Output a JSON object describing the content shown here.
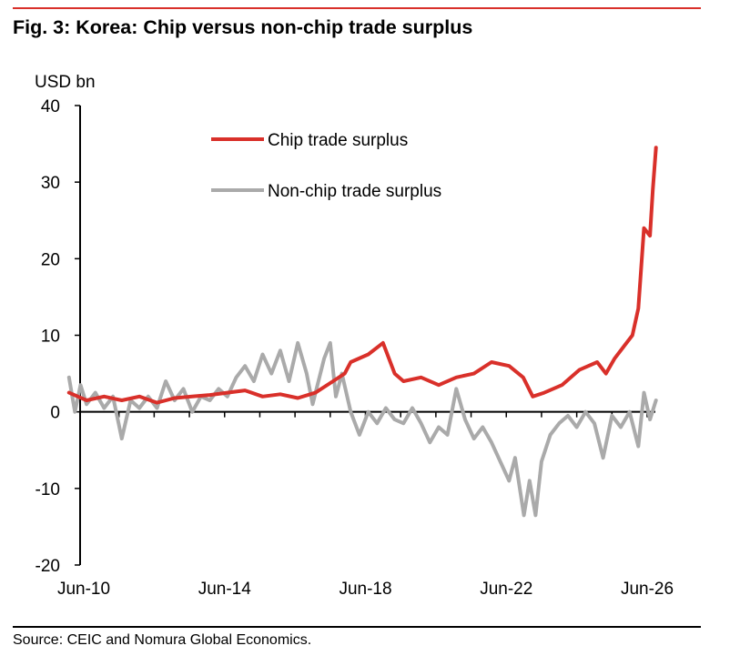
{
  "header": {
    "title": "Fig. 3: Korea: Chip versus non-chip trade surplus"
  },
  "footer": {
    "source": "Source: CEIC and Nomura Global Economics."
  },
  "colors": {
    "chip": "#d9302a",
    "nonchip": "#aaaaaa",
    "accent_rule": "#d9302a"
  },
  "chart_data": {
    "type": "line",
    "title": "Fig. 3: Korea: Chip versus non-chip trade surplus",
    "unit_label": "USD bn",
    "ylim": [
      -20,
      40
    ],
    "y_ticks": [
      -20,
      -10,
      0,
      10,
      20,
      30,
      40
    ],
    "x_tick_labels": [
      "Jun-10",
      "Jun-14",
      "Jun-18",
      "Jun-22",
      "Jun-26"
    ],
    "xlim": [
      2010.42,
      2026.42
    ],
    "legend_position": "top-center",
    "series": [
      {
        "name": "Chip trade surplus",
        "color": "#d9302a",
        "points": [
          [
            2010.0,
            2.5
          ],
          [
            2010.5,
            1.5
          ],
          [
            2011.0,
            2.0
          ],
          [
            2011.5,
            1.5
          ],
          [
            2012.0,
            2.0
          ],
          [
            2012.5,
            1.2
          ],
          [
            2013.0,
            1.8
          ],
          [
            2013.5,
            2.0
          ],
          [
            2014.0,
            2.2
          ],
          [
            2014.5,
            2.5
          ],
          [
            2015.0,
            2.8
          ],
          [
            2015.5,
            2.0
          ],
          [
            2016.0,
            2.3
          ],
          [
            2016.5,
            1.8
          ],
          [
            2017.0,
            2.5
          ],
          [
            2017.5,
            4.0
          ],
          [
            2017.83,
            5.0
          ],
          [
            2018.0,
            6.5
          ],
          [
            2018.5,
            7.5
          ],
          [
            2018.92,
            9.0
          ],
          [
            2019.25,
            5.0
          ],
          [
            2019.5,
            4.0
          ],
          [
            2020.0,
            4.5
          ],
          [
            2020.5,
            3.5
          ],
          [
            2021.0,
            4.5
          ],
          [
            2021.5,
            5.0
          ],
          [
            2022.0,
            6.5
          ],
          [
            2022.5,
            6.0
          ],
          [
            2022.9,
            4.5
          ],
          [
            2023.17,
            2.0
          ],
          [
            2023.5,
            2.5
          ],
          [
            2024.0,
            3.5
          ],
          [
            2024.5,
            5.5
          ],
          [
            2025.0,
            6.5
          ],
          [
            2025.25,
            5.0
          ],
          [
            2025.5,
            7.0
          ],
          [
            2025.75,
            8.5
          ],
          [
            2026.0,
            10.0
          ],
          [
            2026.17,
            13.5
          ],
          [
            2026.33,
            24.0
          ],
          [
            2026.5,
            23.0
          ],
          [
            2026.58,
            29.0
          ],
          [
            2026.67,
            34.5
          ]
        ]
      },
      {
        "name": "Non-chip trade surplus",
        "color": "#aaaaaa",
        "points": [
          [
            2010.0,
            4.5
          ],
          [
            2010.17,
            0.0
          ],
          [
            2010.33,
            3.5
          ],
          [
            2010.5,
            1.0
          ],
          [
            2010.75,
            2.5
          ],
          [
            2011.0,
            0.5
          ],
          [
            2011.25,
            2.0
          ],
          [
            2011.5,
            -3.5
          ],
          [
            2011.75,
            1.5
          ],
          [
            2012.0,
            0.5
          ],
          [
            2012.25,
            2.0
          ],
          [
            2012.5,
            0.5
          ],
          [
            2012.75,
            4.0
          ],
          [
            2013.0,
            1.5
          ],
          [
            2013.25,
            3.0
          ],
          [
            2013.5,
            0.0
          ],
          [
            2013.75,
            2.0
          ],
          [
            2014.0,
            1.5
          ],
          [
            2014.25,
            3.0
          ],
          [
            2014.5,
            2.0
          ],
          [
            2014.75,
            4.5
          ],
          [
            2015.0,
            6.0
          ],
          [
            2015.25,
            4.0
          ],
          [
            2015.5,
            7.5
          ],
          [
            2015.75,
            5.0
          ],
          [
            2016.0,
            8.0
          ],
          [
            2016.25,
            4.0
          ],
          [
            2016.5,
            9.0
          ],
          [
            2016.75,
            5.0
          ],
          [
            2016.92,
            1.0
          ],
          [
            2017.25,
            7.0
          ],
          [
            2017.42,
            9.0
          ],
          [
            2017.58,
            2.0
          ],
          [
            2017.75,
            5.0
          ],
          [
            2018.0,
            0.0
          ],
          [
            2018.25,
            -3.0
          ],
          [
            2018.5,
            0.0
          ],
          [
            2018.75,
            -1.5
          ],
          [
            2019.0,
            0.5
          ],
          [
            2019.25,
            -1.0
          ],
          [
            2019.5,
            -1.5
          ],
          [
            2019.75,
            0.5
          ],
          [
            2020.0,
            -1.5
          ],
          [
            2020.25,
            -4.0
          ],
          [
            2020.5,
            -2.0
          ],
          [
            2020.75,
            -3.0
          ],
          [
            2021.0,
            3.0
          ],
          [
            2021.25,
            -1.0
          ],
          [
            2021.5,
            -3.5
          ],
          [
            2021.75,
            -2.0
          ],
          [
            2022.0,
            -4.0
          ],
          [
            2022.25,
            -6.5
          ],
          [
            2022.5,
            -9.0
          ],
          [
            2022.67,
            -6.0
          ],
          [
            2022.92,
            -13.5
          ],
          [
            2023.08,
            -9.0
          ],
          [
            2023.25,
            -13.5
          ],
          [
            2023.42,
            -6.5
          ],
          [
            2023.67,
            -3.0
          ],
          [
            2023.92,
            -1.5
          ],
          [
            2024.17,
            -0.5
          ],
          [
            2024.42,
            -2.0
          ],
          [
            2024.67,
            0.0
          ],
          [
            2024.92,
            -1.5
          ],
          [
            2025.17,
            -6.0
          ],
          [
            2025.42,
            -0.5
          ],
          [
            2025.67,
            -2.0
          ],
          [
            2025.92,
            0.0
          ],
          [
            2026.17,
            -4.5
          ],
          [
            2026.33,
            2.5
          ],
          [
            2026.5,
            -1.0
          ],
          [
            2026.67,
            1.5
          ]
        ]
      }
    ]
  }
}
